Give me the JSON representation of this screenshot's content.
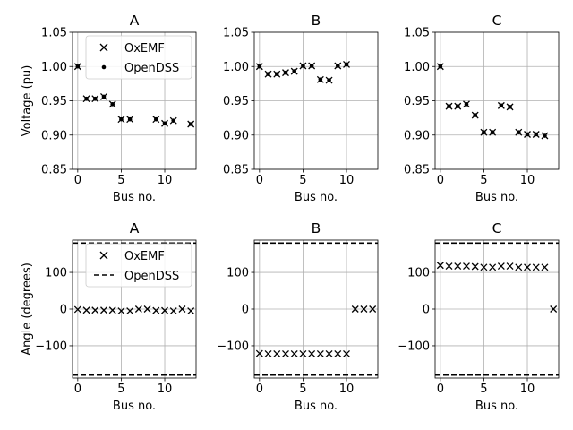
{
  "chart_data": [
    {
      "type": "scatter",
      "title": "A",
      "xlabel": "Bus no.",
      "ylabel": "Voltage (pu)",
      "xlim": [
        -0.6,
        13.6
      ],
      "ylim": [
        0.85,
        1.05
      ],
      "xticks": [
        0,
        5,
        10
      ],
      "yticks": [
        0.85,
        0.9,
        0.95,
        1.0,
        1.05
      ],
      "ytick_labels": [
        "0.85",
        "0.90",
        "0.95",
        "1.00",
        "1.05"
      ],
      "grid": true,
      "legend": {
        "position": "top-center",
        "entries": [
          {
            "label": "OxEMF",
            "marker": "x"
          },
          {
            "label": "OpenDSS",
            "marker": "dot"
          }
        ]
      },
      "series": [
        {
          "name": "OxEMF",
          "marker": "x",
          "x": [
            0,
            1,
            2,
            3,
            4,
            5,
            6,
            9,
            10,
            11,
            13
          ],
          "y": [
            1.0,
            0.953,
            0.953,
            0.956,
            0.945,
            0.923,
            0.923,
            0.923,
            0.917,
            0.921,
            0.916
          ]
        },
        {
          "name": "OpenDSS",
          "marker": "dot",
          "x": [
            0,
            1,
            2,
            3,
            4,
            5,
            6,
            9,
            10,
            11,
            13
          ],
          "y": [
            1.0,
            0.953,
            0.953,
            0.956,
            0.945,
            0.923,
            0.923,
            0.923,
            0.917,
            0.921,
            0.916
          ]
        }
      ]
    },
    {
      "type": "scatter",
      "title": "B",
      "xlabel": "Bus no.",
      "ylabel": "",
      "xlim": [
        -0.6,
        13.6
      ],
      "ylim": [
        0.85,
        1.05
      ],
      "xticks": [
        0,
        5,
        10
      ],
      "yticks": [
        0.85,
        0.9,
        0.95,
        1.0,
        1.05
      ],
      "ytick_labels": [
        "0.85",
        "0.90",
        "0.95",
        "1.00",
        "1.05"
      ],
      "grid": true,
      "series": [
        {
          "name": "OxEMF",
          "marker": "x",
          "x": [
            0,
            1,
            2,
            3,
            4,
            5,
            6,
            7,
            8,
            9,
            10
          ],
          "y": [
            1.0,
            0.989,
            0.989,
            0.991,
            0.993,
            1.001,
            1.001,
            0.981,
            0.98,
            1.001,
            1.003
          ]
        },
        {
          "name": "OpenDSS",
          "marker": "dot",
          "x": [
            0,
            1,
            2,
            3,
            4,
            5,
            6,
            7,
            8,
            9,
            10
          ],
          "y": [
            1.0,
            0.989,
            0.989,
            0.991,
            0.993,
            1.001,
            1.001,
            0.981,
            0.98,
            1.001,
            1.003
          ]
        }
      ]
    },
    {
      "type": "scatter",
      "title": "C",
      "xlabel": "Bus no.",
      "ylabel": "",
      "xlim": [
        -0.6,
        13.6
      ],
      "ylim": [
        0.85,
        1.05
      ],
      "xticks": [
        0,
        5,
        10
      ],
      "yticks": [
        0.85,
        0.9,
        0.95,
        1.0,
        1.05
      ],
      "ytick_labels": [
        "0.85",
        "0.90",
        "0.95",
        "1.00",
        "1.05"
      ],
      "grid": true,
      "series": [
        {
          "name": "OxEMF",
          "marker": "x",
          "x": [
            0,
            1,
            2,
            3,
            4,
            5,
            6,
            7,
            8,
            9,
            10,
            11,
            12
          ],
          "y": [
            1.0,
            0.942,
            0.942,
            0.945,
            0.929,
            0.904,
            0.904,
            0.943,
            0.941,
            0.904,
            0.901,
            0.901,
            0.899
          ]
        },
        {
          "name": "OpenDSS",
          "marker": "dot",
          "x": [
            0,
            1,
            2,
            3,
            4,
            5,
            6,
            7,
            8,
            9,
            10,
            11,
            12
          ],
          "y": [
            1.0,
            0.942,
            0.942,
            0.945,
            0.929,
            0.904,
            0.904,
            0.943,
            0.941,
            0.904,
            0.901,
            0.901,
            0.899
          ]
        }
      ]
    },
    {
      "type": "scatter",
      "title": "A",
      "xlabel": "Bus no.",
      "ylabel": "Angle (degrees)",
      "xlim": [
        -0.6,
        13.6
      ],
      "ylim": [
        -188,
        188
      ],
      "xticks": [
        0,
        5,
        10
      ],
      "yticks": [
        -100,
        0,
        100
      ],
      "ytick_labels": [
        "−100",
        "0",
        "100"
      ],
      "grid": true,
      "legend": {
        "position": "top-center",
        "entries": [
          {
            "label": "OxEMF",
            "marker": "x"
          },
          {
            "label": "OpenDSS",
            "marker": "dash"
          }
        ]
      },
      "series": [
        {
          "name": "OxEMF",
          "marker": "x",
          "x": [
            0,
            1,
            2,
            3,
            4,
            5,
            6,
            7,
            8,
            9,
            10,
            11,
            12,
            13
          ],
          "y": [
            -1,
            -3,
            -3,
            -3,
            -3,
            -5,
            -5,
            0,
            0,
            -4,
            -4,
            -5,
            0,
            -5
          ]
        },
        {
          "name": "OpenDSS",
          "marker": "dash",
          "lines": [
            180,
            -180
          ]
        }
      ]
    },
    {
      "type": "scatter",
      "title": "B",
      "xlabel": "Bus no.",
      "ylabel": "",
      "xlim": [
        -0.6,
        13.6
      ],
      "ylim": [
        -188,
        188
      ],
      "xticks": [
        0,
        5,
        10
      ],
      "yticks": [
        -100,
        0,
        100
      ],
      "ytick_labels": [
        "−100",
        "0",
        "100"
      ],
      "grid": true,
      "series": [
        {
          "name": "OxEMF",
          "marker": "x",
          "x": [
            0,
            1,
            2,
            3,
            4,
            5,
            6,
            7,
            8,
            9,
            10,
            11,
            12,
            13
          ],
          "y": [
            -121,
            -122,
            -122,
            -122,
            -122,
            -122,
            -122,
            -122,
            -122,
            -122,
            -122,
            0,
            0,
            0
          ]
        },
        {
          "name": "OpenDSS",
          "marker": "dash",
          "lines": [
            180,
            -180
          ]
        }
      ]
    },
    {
      "type": "scatter",
      "title": "C",
      "xlabel": "Bus no.",
      "ylabel": "",
      "xlim": [
        -0.6,
        13.6
      ],
      "ylim": [
        -188,
        188
      ],
      "xticks": [
        0,
        5,
        10
      ],
      "yticks": [
        -100,
        0,
        100
      ],
      "ytick_labels": [
        "−100",
        "0",
        "100"
      ],
      "grid": true,
      "series": [
        {
          "name": "OxEMF",
          "marker": "x",
          "x": [
            0,
            1,
            2,
            3,
            4,
            5,
            6,
            7,
            8,
            9,
            10,
            11,
            12,
            13
          ],
          "y": [
            119,
            117,
            117,
            117,
            116,
            114,
            114,
            117,
            117,
            114,
            114,
            114,
            114,
            0
          ]
        },
        {
          "name": "OpenDSS",
          "marker": "dash",
          "lines": [
            180,
            -180
          ]
        }
      ]
    }
  ]
}
